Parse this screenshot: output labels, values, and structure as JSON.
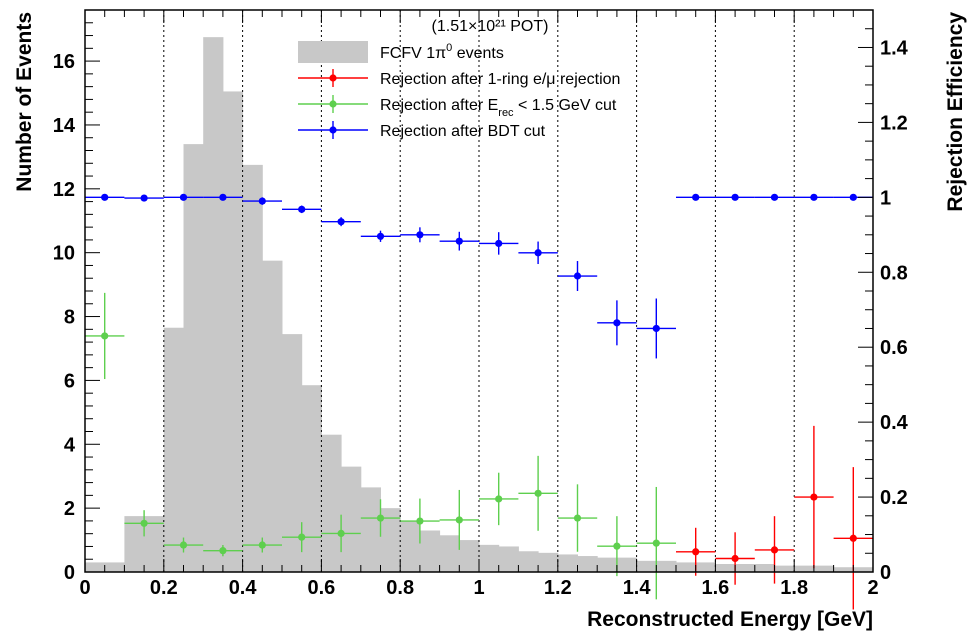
{
  "chart_data": {
    "type": "bar",
    "title": "(1.51×10²¹ POT)",
    "xlabel": "Reconstructed Energy [GeV]",
    "ylabel": "Number of Events",
    "ylabel_right": "Rejection Efficiency",
    "xlim": [
      0,
      2
    ],
    "ylim": [
      0,
      17.6
    ],
    "ylim_right": [
      0,
      1.5
    ],
    "x_ticks": [
      "0",
      "0.2",
      "0.4",
      "0.6",
      "0.8",
      "1",
      "1.2",
      "1.4",
      "1.6",
      "1.8",
      "2"
    ],
    "y_ticks": [
      "0",
      "2",
      "4",
      "6",
      "8",
      "10",
      "12",
      "14",
      "16"
    ],
    "y_ticks_right": [
      "0",
      "0.2",
      "0.4",
      "0.6",
      "0.8",
      "1",
      "1.2",
      "1.4"
    ],
    "grid": "vertical dotted lines at x = 0.2, 0.4, ..., 1.8",
    "bin_width": 0.05,
    "histogram": {
      "name": "FCFV 1π⁰ events",
      "color": "#c8c8c8",
      "bin_edges_start": 0.0,
      "values": [
        0.3,
        0.3,
        1.75,
        1.75,
        7.65,
        13.4,
        16.75,
        15.05,
        12.75,
        9.75,
        7.45,
        5.85,
        4.3,
        3.3,
        2.65,
        2.0,
        1.6,
        1.3,
        1.15,
        1.0,
        0.85,
        0.8,
        0.65,
        0.6,
        0.55,
        0.5,
        0.45,
        0.45,
        0.35,
        0.35,
        0.3,
        0.3,
        0.25,
        0.25,
        0.25,
        0.2,
        0.2,
        0.2,
        0.15,
        0.15
      ]
    },
    "series": [
      {
        "name": "Rejection after 1-ring e/μ rejection",
        "color": "#ff0000",
        "x": [
          1.55,
          1.65,
          1.75,
          1.85,
          1.95
        ],
        "y": [
          0.054,
          0.036,
          0.059,
          0.2,
          0.09
        ],
        "yerr": [
          0.064,
          0.07,
          0.09,
          0.19,
          0.19
        ],
        "xerr": 0.05
      },
      {
        "name": "Rejection after E_rec < 1.5 GeV cut",
        "color": "#5ecf4e",
        "x": [
          0.05,
          0.15,
          0.25,
          0.35,
          0.45,
          0.55,
          0.65,
          0.75,
          0.85,
          0.95,
          1.05,
          1.15,
          1.25,
          1.35,
          1.45
        ],
        "y": [
          0.63,
          0.13,
          0.072,
          0.057,
          0.072,
          0.093,
          0.103,
          0.144,
          0.136,
          0.139,
          0.195,
          0.21,
          0.144,
          0.069,
          0.077
        ],
        "yerr": [
          0.115,
          0.035,
          0.02,
          0.015,
          0.02,
          0.04,
          0.05,
          0.05,
          0.06,
          0.08,
          0.07,
          0.1,
          0.09,
          0.08,
          0.15
        ],
        "xerr": 0.05
      },
      {
        "name": "Rejection after BDT cut",
        "color": "#0000ff",
        "x": [
          0.05,
          0.15,
          0.25,
          0.35,
          0.45,
          0.55,
          0.65,
          0.75,
          0.85,
          0.95,
          1.05,
          1.15,
          1.25,
          1.35,
          1.45,
          1.55,
          1.65,
          1.75,
          1.85,
          1.95
        ],
        "y": [
          1.0,
          0.998,
          1.0,
          1.0,
          0.99,
          0.968,
          0.935,
          0.896,
          0.9,
          0.883,
          0.877,
          0.852,
          0.79,
          0.665,
          0.65,
          1.0,
          1.0,
          1.0,
          1.0,
          1.0
        ],
        "yerr": [
          0.0,
          0.0,
          0.0,
          0.0,
          0.01,
          0.01,
          0.012,
          0.015,
          0.02,
          0.025,
          0.03,
          0.03,
          0.04,
          0.06,
          0.08,
          0,
          0,
          0,
          0,
          0
        ],
        "xerr": 0.05
      }
    ],
    "legend": {
      "placement": "top-center",
      "entries": [
        {
          "text": "FCFV 1π",
          "sup": "0",
          "tail": " events",
          "kind": "fill",
          "color": "#c8c8c8"
        },
        {
          "text": "Rejection after 1-ring e/μ rejection",
          "sup": "",
          "tail": "",
          "kind": "marker",
          "color": "#ff0000"
        },
        {
          "text": "Rejection after E",
          "sub": "rec",
          "tail": " < 1.5 GeV cut",
          "kind": "marker",
          "color": "#5ecf4e"
        },
        {
          "text": "Rejection after BDT cut",
          "sup": "",
          "tail": "",
          "kind": "marker",
          "color": "#0000ff"
        }
      ]
    }
  }
}
